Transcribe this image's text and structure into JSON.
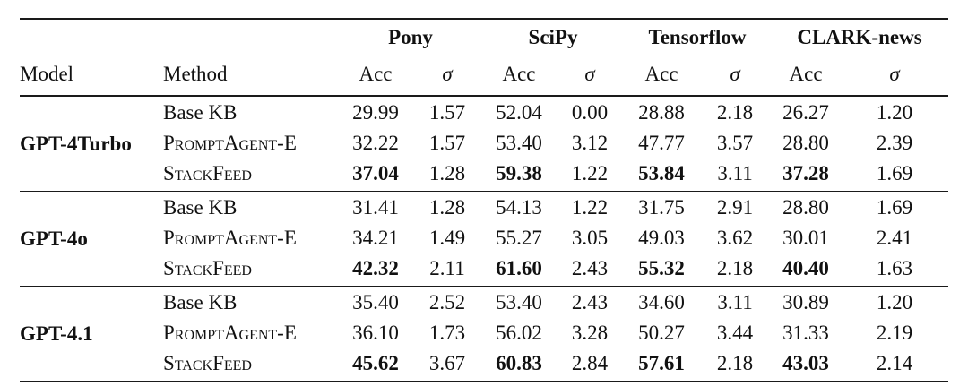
{
  "table": {
    "col_headers": {
      "model": "Model",
      "method": "Method",
      "acc": "Acc",
      "sigma": "σ"
    },
    "groups": [
      {
        "label": "Pony"
      },
      {
        "label": "SciPy"
      },
      {
        "label": "Tensorflow"
      },
      {
        "label": "CLARK-news"
      }
    ],
    "blocks": [
      {
        "model": "GPT-4Turbo",
        "rows": [
          {
            "method": "Base KB",
            "smallcaps": false,
            "best": false,
            "values": [
              "29.99",
              "1.57",
              "52.04",
              "0.00",
              "28.88",
              "2.18",
              "26.27",
              "1.20"
            ]
          },
          {
            "method": "PromptAgent-E",
            "smallcaps": true,
            "best": false,
            "values": [
              "32.22",
              "1.57",
              "53.40",
              "3.12",
              "47.77",
              "3.57",
              "28.80",
              "2.39"
            ]
          },
          {
            "method": "StackFeed",
            "smallcaps": true,
            "best": true,
            "values": [
              "37.04",
              "1.28",
              "59.38",
              "1.22",
              "53.84",
              "3.11",
              "37.28",
              "1.69"
            ]
          }
        ]
      },
      {
        "model": "GPT-4o",
        "rows": [
          {
            "method": "Base KB",
            "smallcaps": false,
            "best": false,
            "values": [
              "31.41",
              "1.28",
              "54.13",
              "1.22",
              "31.75",
              "2.91",
              "28.80",
              "1.69"
            ]
          },
          {
            "method": "PromptAgent-E",
            "smallcaps": true,
            "best": false,
            "values": [
              "34.21",
              "1.49",
              "55.27",
              "3.05",
              "49.03",
              "3.62",
              "30.01",
              "2.41"
            ]
          },
          {
            "method": "StackFeed",
            "smallcaps": true,
            "best": true,
            "values": [
              "42.32",
              "2.11",
              "61.60",
              "2.43",
              "55.32",
              "2.18",
              "40.40",
              "1.63"
            ]
          }
        ]
      },
      {
        "model": "GPT-4.1",
        "rows": [
          {
            "method": "Base KB",
            "smallcaps": false,
            "best": false,
            "values": [
              "35.40",
              "2.52",
              "53.40",
              "2.43",
              "34.60",
              "3.11",
              "30.89",
              "1.20"
            ]
          },
          {
            "method": "PromptAgent-E",
            "smallcaps": true,
            "best": false,
            "values": [
              "36.10",
              "1.73",
              "56.02",
              "3.28",
              "50.27",
              "3.44",
              "31.33",
              "2.19"
            ]
          },
          {
            "method": "StackFeed",
            "smallcaps": true,
            "best": true,
            "values": [
              "45.62",
              "3.67",
              "60.83",
              "2.84",
              "57.61",
              "2.18",
              "43.03",
              "2.14"
            ]
          }
        ]
      }
    ]
  },
  "chart_data": {
    "type": "table",
    "title": "",
    "columns": [
      "Model",
      "Method",
      "Pony Acc",
      "Pony σ",
      "SciPy Acc",
      "SciPy σ",
      "Tensorflow Acc",
      "Tensorflow σ",
      "CLARK-news Acc",
      "CLARK-news σ"
    ],
    "rows": [
      [
        "GPT-4Turbo",
        "Base KB",
        29.99,
        1.57,
        52.04,
        0.0,
        28.88,
        2.18,
        26.27,
        1.2
      ],
      [
        "GPT-4Turbo",
        "PromptAgent-E",
        32.22,
        1.57,
        53.4,
        3.12,
        47.77,
        3.57,
        28.8,
        2.39
      ],
      [
        "GPT-4Turbo",
        "StackFeed",
        37.04,
        1.28,
        59.38,
        1.22,
        53.84,
        3.11,
        37.28,
        1.69
      ],
      [
        "GPT-4o",
        "Base KB",
        31.41,
        1.28,
        54.13,
        1.22,
        31.75,
        2.91,
        28.8,
        1.69
      ],
      [
        "GPT-4o",
        "PromptAgent-E",
        34.21,
        1.49,
        55.27,
        3.05,
        49.03,
        3.62,
        30.01,
        2.41
      ],
      [
        "GPT-4o",
        "StackFeed",
        42.32,
        2.11,
        61.6,
        2.43,
        55.32,
        2.18,
        40.4,
        1.63
      ],
      [
        "GPT-4.1",
        "Base KB",
        35.4,
        2.52,
        53.4,
        2.43,
        34.6,
        3.11,
        30.89,
        1.2
      ],
      [
        "GPT-4.1",
        "PromptAgent-E",
        36.1,
        1.73,
        56.02,
        3.28,
        50.27,
        3.44,
        31.33,
        2.19
      ],
      [
        "GPT-4.1",
        "StackFeed",
        45.62,
        3.67,
        60.83,
        2.84,
        57.61,
        2.18,
        43.03,
        2.14
      ]
    ],
    "notes": "StackFeed Acc values are bold (best per column group)"
  }
}
